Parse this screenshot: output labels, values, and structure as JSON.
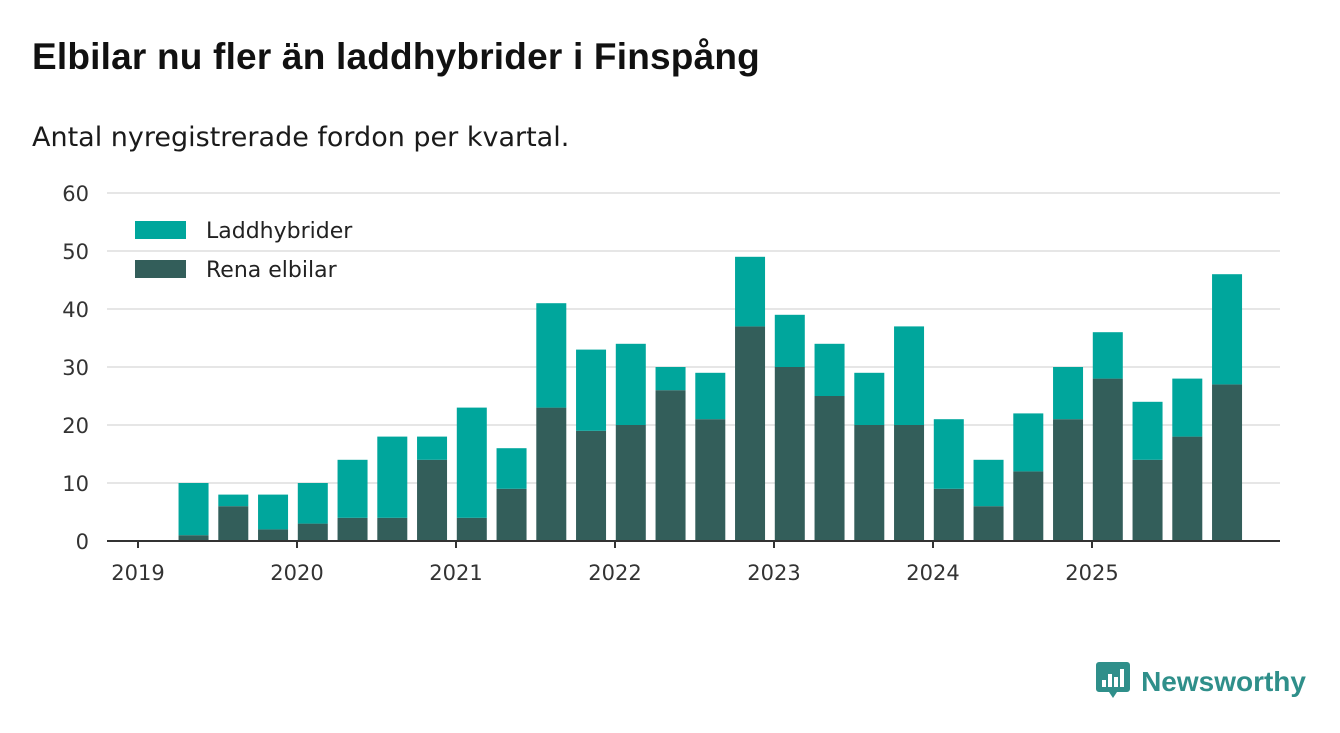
{
  "title": "Elbilar nu fler än laddhybrider i Finspång",
  "subtitle": "Antal nyregistrerade fordon per kvartal.",
  "brand": {
    "name": "Newsworthy",
    "color": "#2f8f8a"
  },
  "colors": {
    "laddhybrider": "#00a69c",
    "elbilar": "#335e5a",
    "grid": "#dddddd",
    "axis": "#333333"
  },
  "chart_data": {
    "type": "bar",
    "stacked": true,
    "title": "Elbilar nu fler än laddhybrider i Finspång",
    "subtitle": "Antal nyregistrerade fordon per kvartal.",
    "xlabel": "",
    "ylabel": "",
    "ylim": [
      0,
      60
    ],
    "yticks": [
      0,
      10,
      20,
      30,
      40,
      50,
      60
    ],
    "grid": true,
    "legend_position": "top-left",
    "xtick_labels": [
      "2019",
      "2020",
      "2021",
      "2022",
      "2023",
      "2024",
      "2025"
    ],
    "categories": [
      "2019 Q1",
      "2019 Q2",
      "2019 Q3",
      "2019 Q4",
      "2020 Q1",
      "2020 Q2",
      "2020 Q3",
      "2020 Q4",
      "2021 Q1",
      "2021 Q2",
      "2021 Q3",
      "2021 Q4",
      "2022 Q1",
      "2022 Q2",
      "2022 Q3",
      "2022 Q4",
      "2023 Q1",
      "2023 Q2",
      "2023 Q3",
      "2023 Q4",
      "2024 Q1",
      "2024 Q2",
      "2024 Q3",
      "2024 Q4",
      "2025 Q1",
      "2025 Q2",
      "2025 Q3",
      "2025 Q4"
    ],
    "series": [
      {
        "name": "Rena elbilar",
        "values": [
          0,
          1,
          6,
          2,
          3,
          4,
          4,
          14,
          4,
          9,
          23,
          19,
          20,
          26,
          21,
          37,
          30,
          25,
          20,
          20,
          9,
          6,
          12,
          21,
          28,
          14,
          18,
          27
        ]
      },
      {
        "name": "Laddhybrider",
        "values": [
          0,
          9,
          2,
          6,
          7,
          10,
          14,
          4,
          19,
          7,
          18,
          14,
          14,
          4,
          8,
          12,
          9,
          9,
          9,
          17,
          12,
          8,
          10,
          9,
          8,
          10,
          10,
          19
        ]
      }
    ],
    "legend": [
      "Laddhybrider",
      "Rena elbilar"
    ]
  }
}
